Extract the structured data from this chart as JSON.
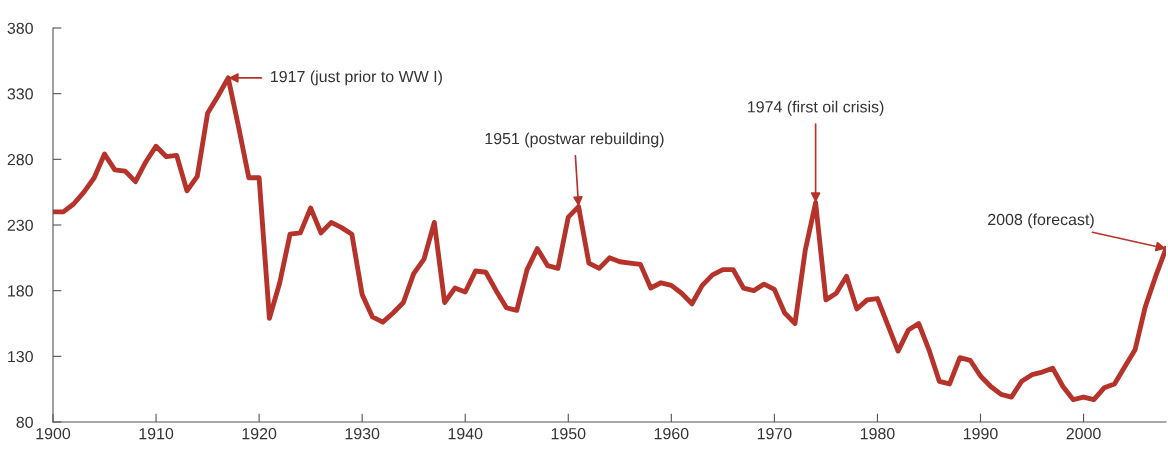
{
  "chart_data": {
    "type": "line",
    "x": [
      1900,
      1901,
      1902,
      1903,
      1904,
      1905,
      1906,
      1907,
      1908,
      1909,
      1910,
      1911,
      1912,
      1913,
      1914,
      1915,
      1916,
      1917,
      1918,
      1919,
      1920,
      1921,
      1922,
      1923,
      1924,
      1925,
      1926,
      1927,
      1928,
      1929,
      1930,
      1931,
      1932,
      1933,
      1934,
      1935,
      1936,
      1937,
      1938,
      1939,
      1940,
      1941,
      1942,
      1943,
      1944,
      1945,
      1946,
      1947,
      1948,
      1949,
      1950,
      1951,
      1952,
      1953,
      1954,
      1955,
      1956,
      1957,
      1958,
      1959,
      1960,
      1961,
      1962,
      1963,
      1964,
      1965,
      1966,
      1967,
      1968,
      1969,
      1970,
      1971,
      1972,
      1973,
      1974,
      1975,
      1976,
      1977,
      1978,
      1979,
      1980,
      1981,
      1982,
      1983,
      1984,
      1985,
      1986,
      1987,
      1988,
      1989,
      1990,
      1991,
      1992,
      1993,
      1994,
      1995,
      1996,
      1997,
      1998,
      1999,
      2000,
      2001,
      2002,
      2003,
      2004,
      2005,
      2006,
      2007,
      2008
    ],
    "series": [
      {
        "color": "#b5332a",
        "values": [
          240,
          240,
          246,
          255,
          266,
          284,
          272,
          271,
          263,
          278,
          290,
          282,
          283,
          256,
          267,
          315,
          328,
          342,
          305,
          266,
          266,
          159,
          186,
          223,
          224,
          243,
          224,
          232,
          228,
          223,
          177,
          160,
          156,
          163,
          171,
          193,
          204,
          232,
          171,
          182,
          179,
          195,
          194,
          180,
          167,
          165,
          196,
          212,
          199,
          197,
          236,
          244,
          201,
          197,
          205,
          202,
          201,
          200,
          182,
          186,
          184,
          178,
          170,
          184,
          192,
          196,
          196,
          182,
          180,
          185,
          181,
          163,
          155,
          211,
          247,
          173,
          178,
          191,
          166,
          173,
          174,
          154,
          134,
          150,
          155,
          135,
          111,
          109,
          129,
          127,
          115,
          107,
          101,
          99,
          111,
          116,
          118,
          121,
          107,
          97,
          99,
          97,
          106,
          109,
          122,
          135,
          168,
          191,
          212
        ]
      }
    ],
    "xlim": [
      1900,
      2008
    ],
    "ylim": [
      80,
      380
    ],
    "xticks": [
      1900,
      1910,
      1920,
      1930,
      1940,
      1950,
      1960,
      1970,
      1980,
      1990,
      2000
    ],
    "yticks": [
      80,
      130,
      180,
      230,
      280,
      330,
      380
    ],
    "grid": false,
    "marker": "none",
    "line_style": "solid",
    "annotations": [
      {
        "text": "1917 (just prior to WW I)",
        "x": 1917,
        "y": 342
      },
      {
        "text": "1951 (postwar rebuilding)",
        "x": 1951,
        "y": 244
      },
      {
        "text": "1974 (first oil crisis)",
        "x": 1974,
        "y": 247
      },
      {
        "text": "2008 (forecast)",
        "x": 2008,
        "y": 212
      }
    ]
  }
}
